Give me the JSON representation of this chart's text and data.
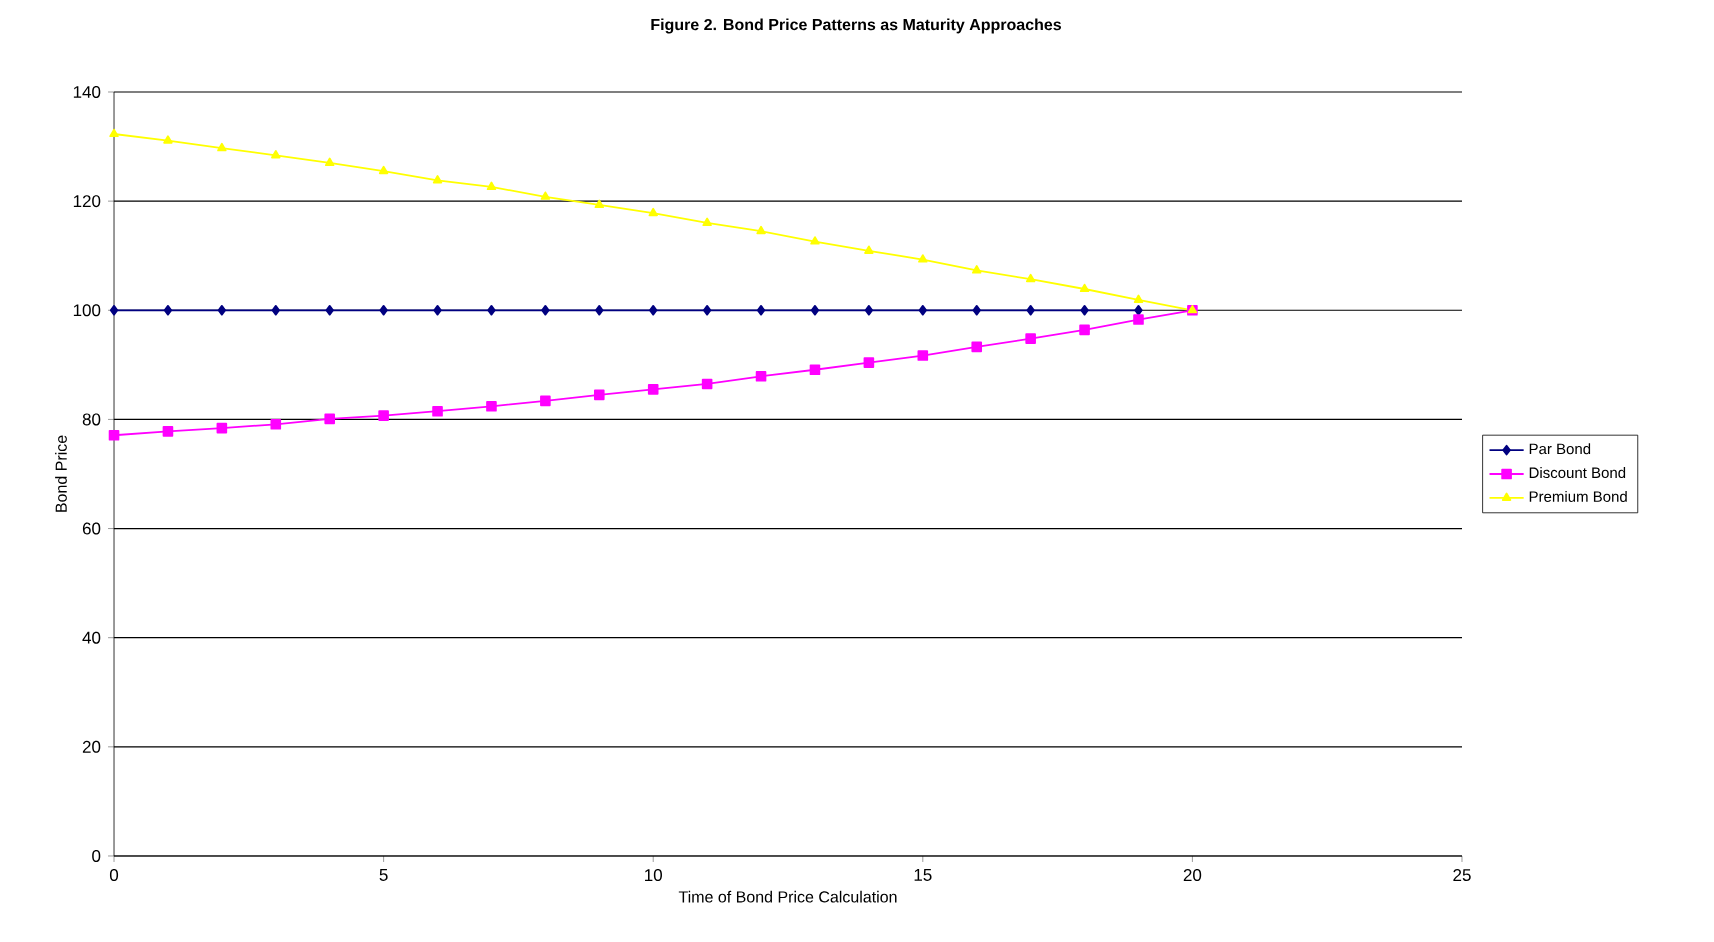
{
  "chart_data": {
    "type": "line",
    "title": "Figure 2.  Bond Price Patterns as Maturity Approaches",
    "xlabel": "Time of Bond Price Calculation",
    "ylabel": "Bond Price",
    "x": [
      0,
      1,
      2,
      3,
      4,
      5,
      6,
      7,
      8,
      9,
      10,
      11,
      12,
      13,
      14,
      15,
      16,
      17,
      18,
      19,
      20
    ],
    "series": [
      {
        "name": "Par Bond",
        "color": "#000080",
        "marker": "diamond",
        "values": [
          100,
          100,
          100,
          100,
          100,
          100,
          100,
          100,
          100,
          100,
          100,
          100,
          100,
          100,
          100,
          100,
          100,
          100,
          100,
          100,
          null
        ]
      },
      {
        "name": "Discount Bond",
        "color": "#ff00ff",
        "marker": "square",
        "values": [
          77.1,
          77.8,
          78.4,
          79.1,
          80.1,
          80.7,
          81.5,
          82.4,
          83.4,
          84.5,
          85.5,
          86.5,
          87.9,
          89.1,
          90.4,
          91.7,
          93.3,
          94.8,
          96.4,
          98.3,
          100
        ]
      },
      {
        "name": "Premium Bond",
        "color": "#ffff00",
        "marker": "triangle",
        "values": [
          132.3,
          131.1,
          129.7,
          128.4,
          127.0,
          125.5,
          123.8,
          122.6,
          120.8,
          119.3,
          117.8,
          116.0,
          114.5,
          112.6,
          110.9,
          109.3,
          107.3,
          105.7,
          103.9,
          101.9,
          100
        ]
      }
    ],
    "xlim": [
      0,
      25
    ],
    "xticks": [
      0,
      5,
      10,
      15,
      20,
      25
    ],
    "ylim": [
      0,
      140
    ],
    "yticks": [
      0,
      20,
      40,
      60,
      80,
      100,
      120,
      140
    ],
    "grid": "y",
    "legend": "right",
    "line_style": "solid"
  }
}
